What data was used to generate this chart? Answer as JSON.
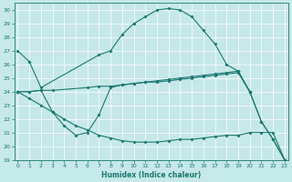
{
  "bg_color": "#c5e8e8",
  "line_color": "#1a7a6e",
  "grid_color": "#ffffff",
  "xlabel": "Humidex (Indice chaleur)",
  "xlim": [
    -0.3,
    23.3
  ],
  "ylim": [
    19,
    30.5
  ],
  "xticks": [
    0,
    1,
    2,
    3,
    4,
    5,
    6,
    7,
    8,
    9,
    10,
    11,
    12,
    13,
    14,
    15,
    16,
    17,
    18,
    19,
    20,
    21,
    22,
    23
  ],
  "yticks": [
    19,
    20,
    21,
    22,
    23,
    24,
    25,
    26,
    27,
    28,
    29,
    30
  ],
  "line1": {
    "x": [
      0,
      1,
      2,
      7,
      8,
      9,
      10,
      11,
      12,
      13,
      14,
      15,
      16,
      17,
      18,
      19,
      20,
      21,
      22,
      23
    ],
    "y": [
      27.0,
      26.2,
      24.3,
      26.7,
      27.0,
      28.2,
      29.0,
      29.5,
      30.0,
      30.1,
      30.0,
      29.5,
      28.5,
      27.5,
      26.0,
      25.5,
      24.0,
      21.8,
      20.5,
      19.0
    ]
  },
  "line2": {
    "x": [
      0,
      1,
      2,
      3,
      6,
      7,
      8,
      9,
      10,
      11,
      12,
      13,
      14,
      15,
      16,
      17,
      18,
      19,
      20
    ],
    "y": [
      24.0,
      24.0,
      24.1,
      24.1,
      24.3,
      24.4,
      24.4,
      24.5,
      24.6,
      24.7,
      24.7,
      24.8,
      24.9,
      25.0,
      25.1,
      25.2,
      25.3,
      25.4,
      24.0
    ]
  },
  "line3": {
    "x": [
      0,
      1,
      2,
      3,
      4,
      5,
      6,
      7,
      8,
      9,
      10,
      11,
      12,
      13,
      14,
      15,
      16,
      17,
      18,
      19,
      20,
      21,
      22,
      23
    ],
    "y": [
      24.0,
      24.0,
      24.1,
      22.5,
      21.5,
      20.8,
      21.0,
      22.3,
      24.3,
      24.5,
      24.6,
      24.7,
      24.8,
      24.9,
      25.0,
      25.1,
      25.2,
      25.3,
      25.4,
      25.5,
      24.0,
      21.8,
      20.5,
      19.0
    ]
  },
  "line4": {
    "x": [
      0,
      1,
      2,
      3,
      4,
      5,
      6,
      7,
      8,
      9,
      10,
      11,
      12,
      13,
      14,
      15,
      16,
      17,
      18,
      19,
      20,
      21,
      22,
      23
    ],
    "y": [
      24.0,
      23.5,
      23.0,
      22.5,
      22.0,
      21.5,
      21.2,
      20.8,
      20.6,
      20.4,
      20.3,
      20.3,
      20.3,
      20.4,
      20.5,
      20.5,
      20.6,
      20.7,
      20.8,
      20.8,
      21.0,
      21.0,
      21.0,
      19.0
    ]
  }
}
